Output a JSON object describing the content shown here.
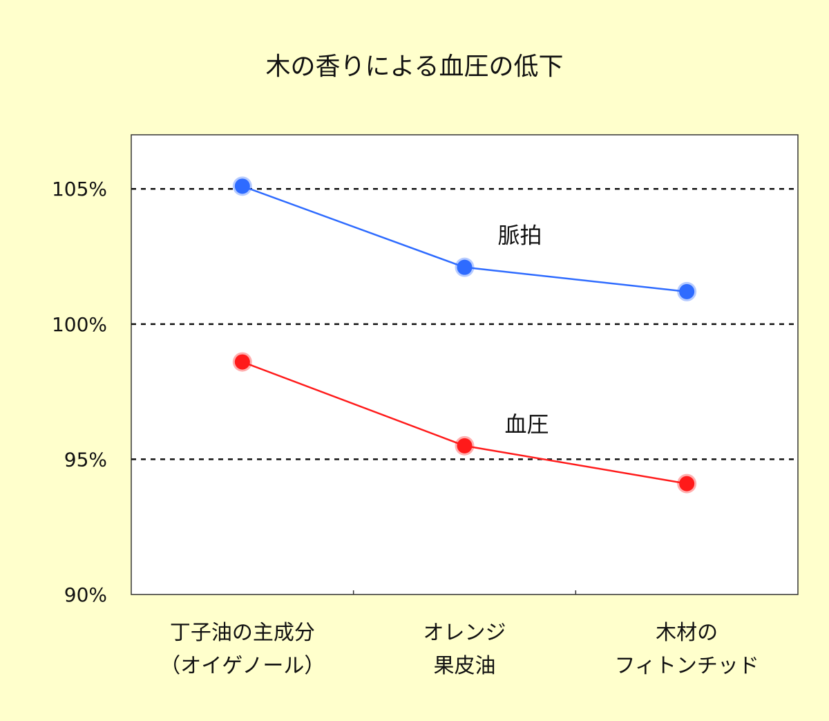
{
  "chart_data": {
    "type": "line",
    "title": "木の香りによる血圧の低下",
    "categories": [
      [
        "丁子油の主成分",
        "（オイゲノール）"
      ],
      [
        "オレンジ",
        "果皮油"
      ],
      [
        "木材の",
        "フィトンチッド"
      ]
    ],
    "y_tick_labels": [
      "90%",
      "95%",
      "100%",
      "105%"
    ],
    "y_ticks": [
      90,
      95,
      100,
      105
    ],
    "ylim": [
      90,
      107
    ],
    "grid": "dashed horizontal at 95%, 100%, 105%",
    "legend": "inline labels next to lines",
    "series": [
      {
        "name": "脈拍",
        "values": [
          105.1,
          102.1,
          101.2
        ],
        "color": "#2E6BFF"
      },
      {
        "name": "血圧",
        "values": [
          98.6,
          95.5,
          94.1
        ],
        "color": "#FF1A1A"
      }
    ]
  }
}
